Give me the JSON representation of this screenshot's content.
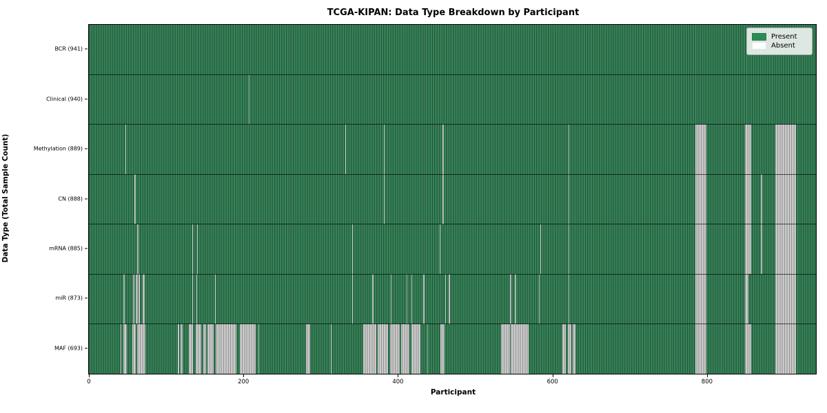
{
  "title": "TCGA-KIPAN: Data Type Breakdown by Participant",
  "axes": {
    "xlabel": "Participant",
    "ylabel": "Data Type (Total Sample Count)"
  },
  "legend": {
    "present_label": "Present",
    "absent_label": "Absent"
  },
  "colors": {
    "present_plot": "#2e7a50",
    "present_legend": "#2e8b57",
    "absent_plot": "#c8c8c8",
    "absent_legend": "#ffffff"
  },
  "chart_data": {
    "type": "heatmap",
    "title": "TCGA-KIPAN: Data Type Breakdown by Participant",
    "xlabel": "Participant",
    "ylabel": "Data Type (Total Sample Count)",
    "legend": [
      "Present",
      "Absent"
    ],
    "legend_position": "upper right",
    "x_range": [
      0,
      941
    ],
    "x_ticks": [
      0,
      200,
      400,
      600,
      800
    ],
    "n_participants": 941,
    "value_encoding": {
      "present": "green",
      "absent": "white"
    },
    "rows": [
      {
        "label": "BCR (941)",
        "data_type": "BCR",
        "present_count": 941,
        "absent_ranges": []
      },
      {
        "label": "Clinical (940)",
        "data_type": "Clinical",
        "present_count": 940,
        "absent_ranges": [
          [
            207,
            208
          ]
        ]
      },
      {
        "label": "Methylation (889)",
        "data_type": "Methylation",
        "present_count": 889,
        "absent_ranges": [
          [
            47,
            48
          ],
          [
            332,
            333
          ],
          [
            382,
            383
          ],
          [
            458,
            459
          ],
          [
            621,
            622
          ],
          [
            785,
            799
          ],
          [
            849,
            857
          ],
          [
            888,
            915
          ]
        ]
      },
      {
        "label": "CN (888)",
        "data_type": "CN",
        "present_count": 888,
        "absent_ranges": [
          [
            59,
            61
          ],
          [
            382,
            383
          ],
          [
            458,
            459
          ],
          [
            621,
            622
          ],
          [
            870,
            871
          ],
          [
            785,
            799
          ],
          [
            849,
            857
          ],
          [
            888,
            915
          ]
        ]
      },
      {
        "label": "mRNA (885)",
        "data_type": "mRNA",
        "present_count": 885,
        "absent_ranges": [
          [
            62,
            64
          ],
          [
            134,
            135
          ],
          [
            140,
            141
          ],
          [
            341,
            342
          ],
          [
            454,
            455
          ],
          [
            584,
            585
          ],
          [
            621,
            622
          ],
          [
            870,
            871
          ],
          [
            785,
            799
          ],
          [
            849,
            857
          ],
          [
            888,
            915
          ]
        ]
      },
      {
        "label": "miR (873)",
        "data_type": "miR",
        "present_count": 873,
        "absent_ranges": [
          [
            45,
            46
          ],
          [
            57,
            59
          ],
          [
            61,
            63
          ],
          [
            64,
            66
          ],
          [
            70,
            72
          ],
          [
            134,
            135
          ],
          [
            139,
            140
          ],
          [
            163,
            164
          ],
          [
            341,
            342
          ],
          [
            367,
            368
          ],
          [
            391,
            392
          ],
          [
            411,
            412
          ],
          [
            417,
            418
          ],
          [
            433,
            434
          ],
          [
            461,
            462
          ],
          [
            466,
            467
          ],
          [
            545,
            547
          ],
          [
            551,
            553
          ],
          [
            582,
            583
          ],
          [
            621,
            622
          ],
          [
            785,
            799
          ],
          [
            849,
            854
          ],
          [
            888,
            915
          ]
        ]
      },
      {
        "label": "MAF (693)",
        "data_type": "MAF",
        "present_count": 693,
        "absent_ranges": [
          [
            41,
            42
          ],
          [
            45,
            49
          ],
          [
            56,
            61
          ],
          [
            62,
            73
          ],
          [
            115,
            117
          ],
          [
            119,
            121
          ],
          [
            129,
            135
          ],
          [
            138,
            145
          ],
          [
            148,
            152
          ],
          [
            153,
            161
          ],
          [
            164,
            191
          ],
          [
            195,
            216
          ],
          [
            219,
            220
          ],
          [
            281,
            286
          ],
          [
            313,
            314
          ],
          [
            355,
            372
          ],
          [
            374,
            387
          ],
          [
            390,
            402
          ],
          [
            404,
            415
          ],
          [
            417,
            429
          ],
          [
            438,
            439
          ],
          [
            455,
            460
          ],
          [
            533,
            545
          ],
          [
            546,
            569
          ],
          [
            613,
            617
          ],
          [
            620,
            624
          ],
          [
            626,
            630
          ],
          [
            785,
            799
          ],
          [
            849,
            857
          ],
          [
            888,
            915
          ]
        ]
      }
    ]
  }
}
